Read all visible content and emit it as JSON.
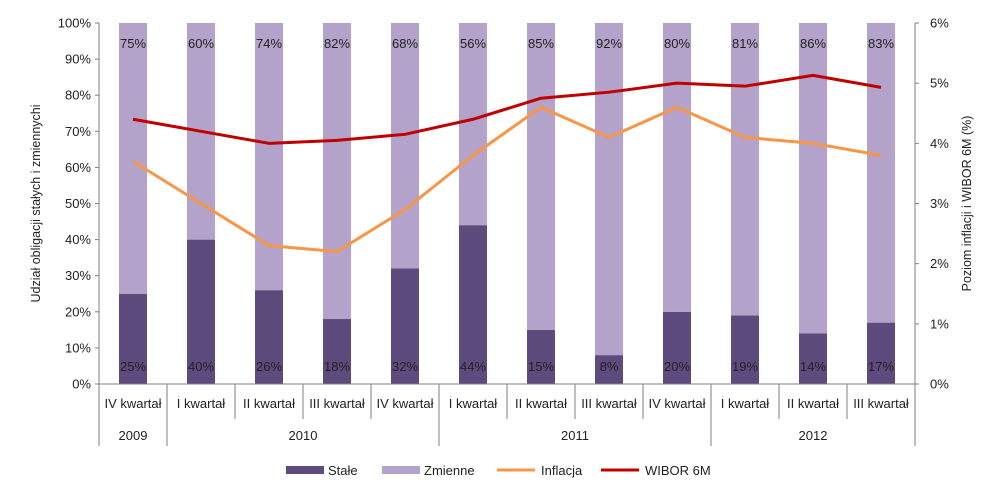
{
  "chart_data": {
    "type": "bar",
    "stacked": true,
    "categories": [
      "IV kwartał",
      "I kwartał",
      "II kwartał",
      "III kwartał",
      "IV kwartał",
      "I kwartał",
      "II kwartał",
      "III kwartał",
      "IV kwartał",
      "I kwartał",
      "II kwartał",
      "III kwartał"
    ],
    "years": [
      {
        "label": "2009",
        "start": 0,
        "end": 0
      },
      {
        "label": "2010",
        "start": 1,
        "end": 4
      },
      {
        "label": "2011",
        "start": 5,
        "end": 8
      },
      {
        "label": "2012",
        "start": 9,
        "end": 11
      }
    ],
    "series": [
      {
        "name": "Stałe",
        "kind": "bar",
        "axis": "left",
        "color": "#5e4b7d",
        "values": [
          25,
          40,
          26,
          18,
          32,
          44,
          15,
          8,
          20,
          19,
          14,
          17
        ],
        "labels": [
          "25%",
          "40%",
          "26%",
          "18%",
          "32%",
          "44%",
          "15%",
          "8%",
          "20%",
          "19%",
          "14%",
          "17%"
        ]
      },
      {
        "name": "Zmienne",
        "kind": "bar",
        "axis": "left",
        "color": "#b3a2c9",
        "values": [
          75,
          60,
          74,
          82,
          68,
          56,
          85,
          92,
          80,
          81,
          86,
          83
        ],
        "labels": [
          "75%",
          "60%",
          "74%",
          "82%",
          "68%",
          "56%",
          "85%",
          "92%",
          "80%",
          "81%",
          "86%",
          "83%"
        ]
      },
      {
        "name": "Inflacja",
        "kind": "line",
        "axis": "right",
        "color": "#f79646",
        "values": [
          3.7,
          3.0,
          2.3,
          2.2,
          2.9,
          3.8,
          4.6,
          4.1,
          4.6,
          4.1,
          4.0,
          3.8
        ]
      },
      {
        "name": "WIBOR 6M",
        "kind": "line",
        "axis": "right",
        "color": "#c00000",
        "values": [
          4.4,
          4.2,
          4.0,
          4.05,
          4.15,
          4.4,
          4.75,
          4.85,
          5.0,
          4.95,
          5.13,
          4.93
        ]
      }
    ],
    "ylabel": "Udział obligacji stałych i zmiennychi",
    "y2label": "Poziom inflacji i WIBOR  6M (%)",
    "ylim": [
      0,
      100
    ],
    "y2lim": [
      0,
      6
    ],
    "yticks": [
      "0%",
      "10%",
      "20%",
      "30%",
      "40%",
      "50%",
      "60%",
      "70%",
      "80%",
      "90%",
      "100%"
    ],
    "y2ticks": [
      "0%",
      "1%",
      "2%",
      "3%",
      "4%",
      "5%",
      "6%"
    ],
    "grid": false,
    "legend_position": "bottom"
  }
}
